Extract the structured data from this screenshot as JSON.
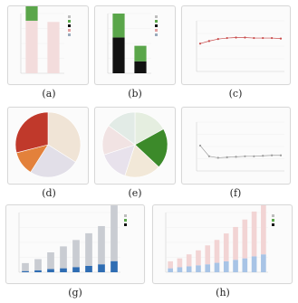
{
  "chart_data": [
    {
      "id": "a",
      "caption": "(a)",
      "type": "bar",
      "categories": [
        "",
        ""
      ],
      "series": [
        {
          "values": [
            88,
            86
          ],
          "color": "#f3dcdc"
        },
        {
          "values": [
            40,
            0
          ],
          "color": "#5aa64a"
        }
      ],
      "ylim": [
        0,
        100
      ],
      "legend": [
        "",
        "",
        "",
        "",
        ""
      ],
      "legend_position": "top-right"
    },
    {
      "id": "b",
      "caption": "(b)",
      "type": "bar",
      "categories": [
        "",
        ""
      ],
      "series": [
        {
          "values": [
            60,
            20
          ],
          "color": "#111111"
        },
        {
          "values": [
            40,
            26
          ],
          "color": "#5aa64a"
        }
      ],
      "ylim": [
        0,
        100
      ],
      "legend": [
        "",
        "",
        "",
        "",
        ""
      ],
      "legend_position": "top-right"
    },
    {
      "id": "c",
      "caption": "(c)",
      "type": "line",
      "x": [
        1,
        2,
        3,
        4,
        5,
        6,
        7,
        8,
        9,
        10
      ],
      "series": [
        {
          "values": [
            55,
            60,
            64,
            66,
            67,
            67,
            66,
            66,
            66,
            65
          ],
          "color": "#c84a4a"
        }
      ],
      "ylim": [
        0,
        100
      ]
    },
    {
      "id": "d",
      "caption": "(d)",
      "type": "pie",
      "slices": [
        {
          "value": 34,
          "color": "#f0e4d6"
        },
        {
          "value": 25,
          "color": "#e2dfe8"
        },
        {
          "value": 12,
          "color": "#e3813b"
        },
        {
          "value": 29,
          "color": "#c0392b"
        }
      ]
    },
    {
      "id": "e",
      "caption": "(e)",
      "type": "pie",
      "slices": [
        {
          "value": 17,
          "color": "#e5eee0"
        },
        {
          "value": 20,
          "color": "#3c8a2a"
        },
        {
          "value": 18,
          "color": "#f2e8d8"
        },
        {
          "value": 15,
          "color": "#e8e2ec"
        },
        {
          "value": 15,
          "color": "#f1e3e3"
        },
        {
          "value": 15,
          "color": "#e2ebe6"
        }
      ]
    },
    {
      "id": "f",
      "caption": "(f)",
      "type": "line",
      "x": [
        1,
        2,
        3,
        4,
        5,
        6,
        7,
        8,
        9,
        10
      ],
      "series": [
        {
          "values": [
            52,
            30,
            27,
            28,
            29,
            30,
            30,
            31,
            32,
            32
          ],
          "color": "#9a9a9a"
        }
      ],
      "ylim": [
        0,
        100
      ]
    },
    {
      "id": "g",
      "caption": "(g)",
      "type": "bar",
      "categories": [
        "",
        "",
        "",
        "",
        "",
        "",
        "",
        ""
      ],
      "series": [
        {
          "values": [
            3,
            5,
            8,
            10,
            13,
            16,
            20,
            28
          ],
          "color": "#2f6db3"
        },
        {
          "values": [
            20,
            28,
            42,
            55,
            68,
            82,
            96,
            140
          ],
          "color": "#c9ccd2"
        }
      ],
      "ylim": [
        0,
        150
      ],
      "legend": [
        "",
        "",
        ""
      ],
      "legend_position": "top-right"
    },
    {
      "id": "h",
      "caption": "(h)",
      "type": "bar",
      "categories": [
        "",
        "",
        "",
        "",
        "",
        "",
        "",
        "",
        "",
        "",
        ""
      ],
      "series": [
        {
          "values": [
            8,
            10,
            12,
            14,
            16,
            19,
            22,
            25,
            28,
            32,
            36
          ],
          "color": "#a8c4e6"
        },
        {
          "values": [
            14,
            18,
            24,
            30,
            38,
            46,
            56,
            66,
            78,
            90,
            104
          ],
          "color": "#f2d4d4"
        }
      ],
      "ylim": [
        0,
        120
      ],
      "legend": [
        "",
        "",
        ""
      ],
      "legend_position": "top-right"
    }
  ]
}
